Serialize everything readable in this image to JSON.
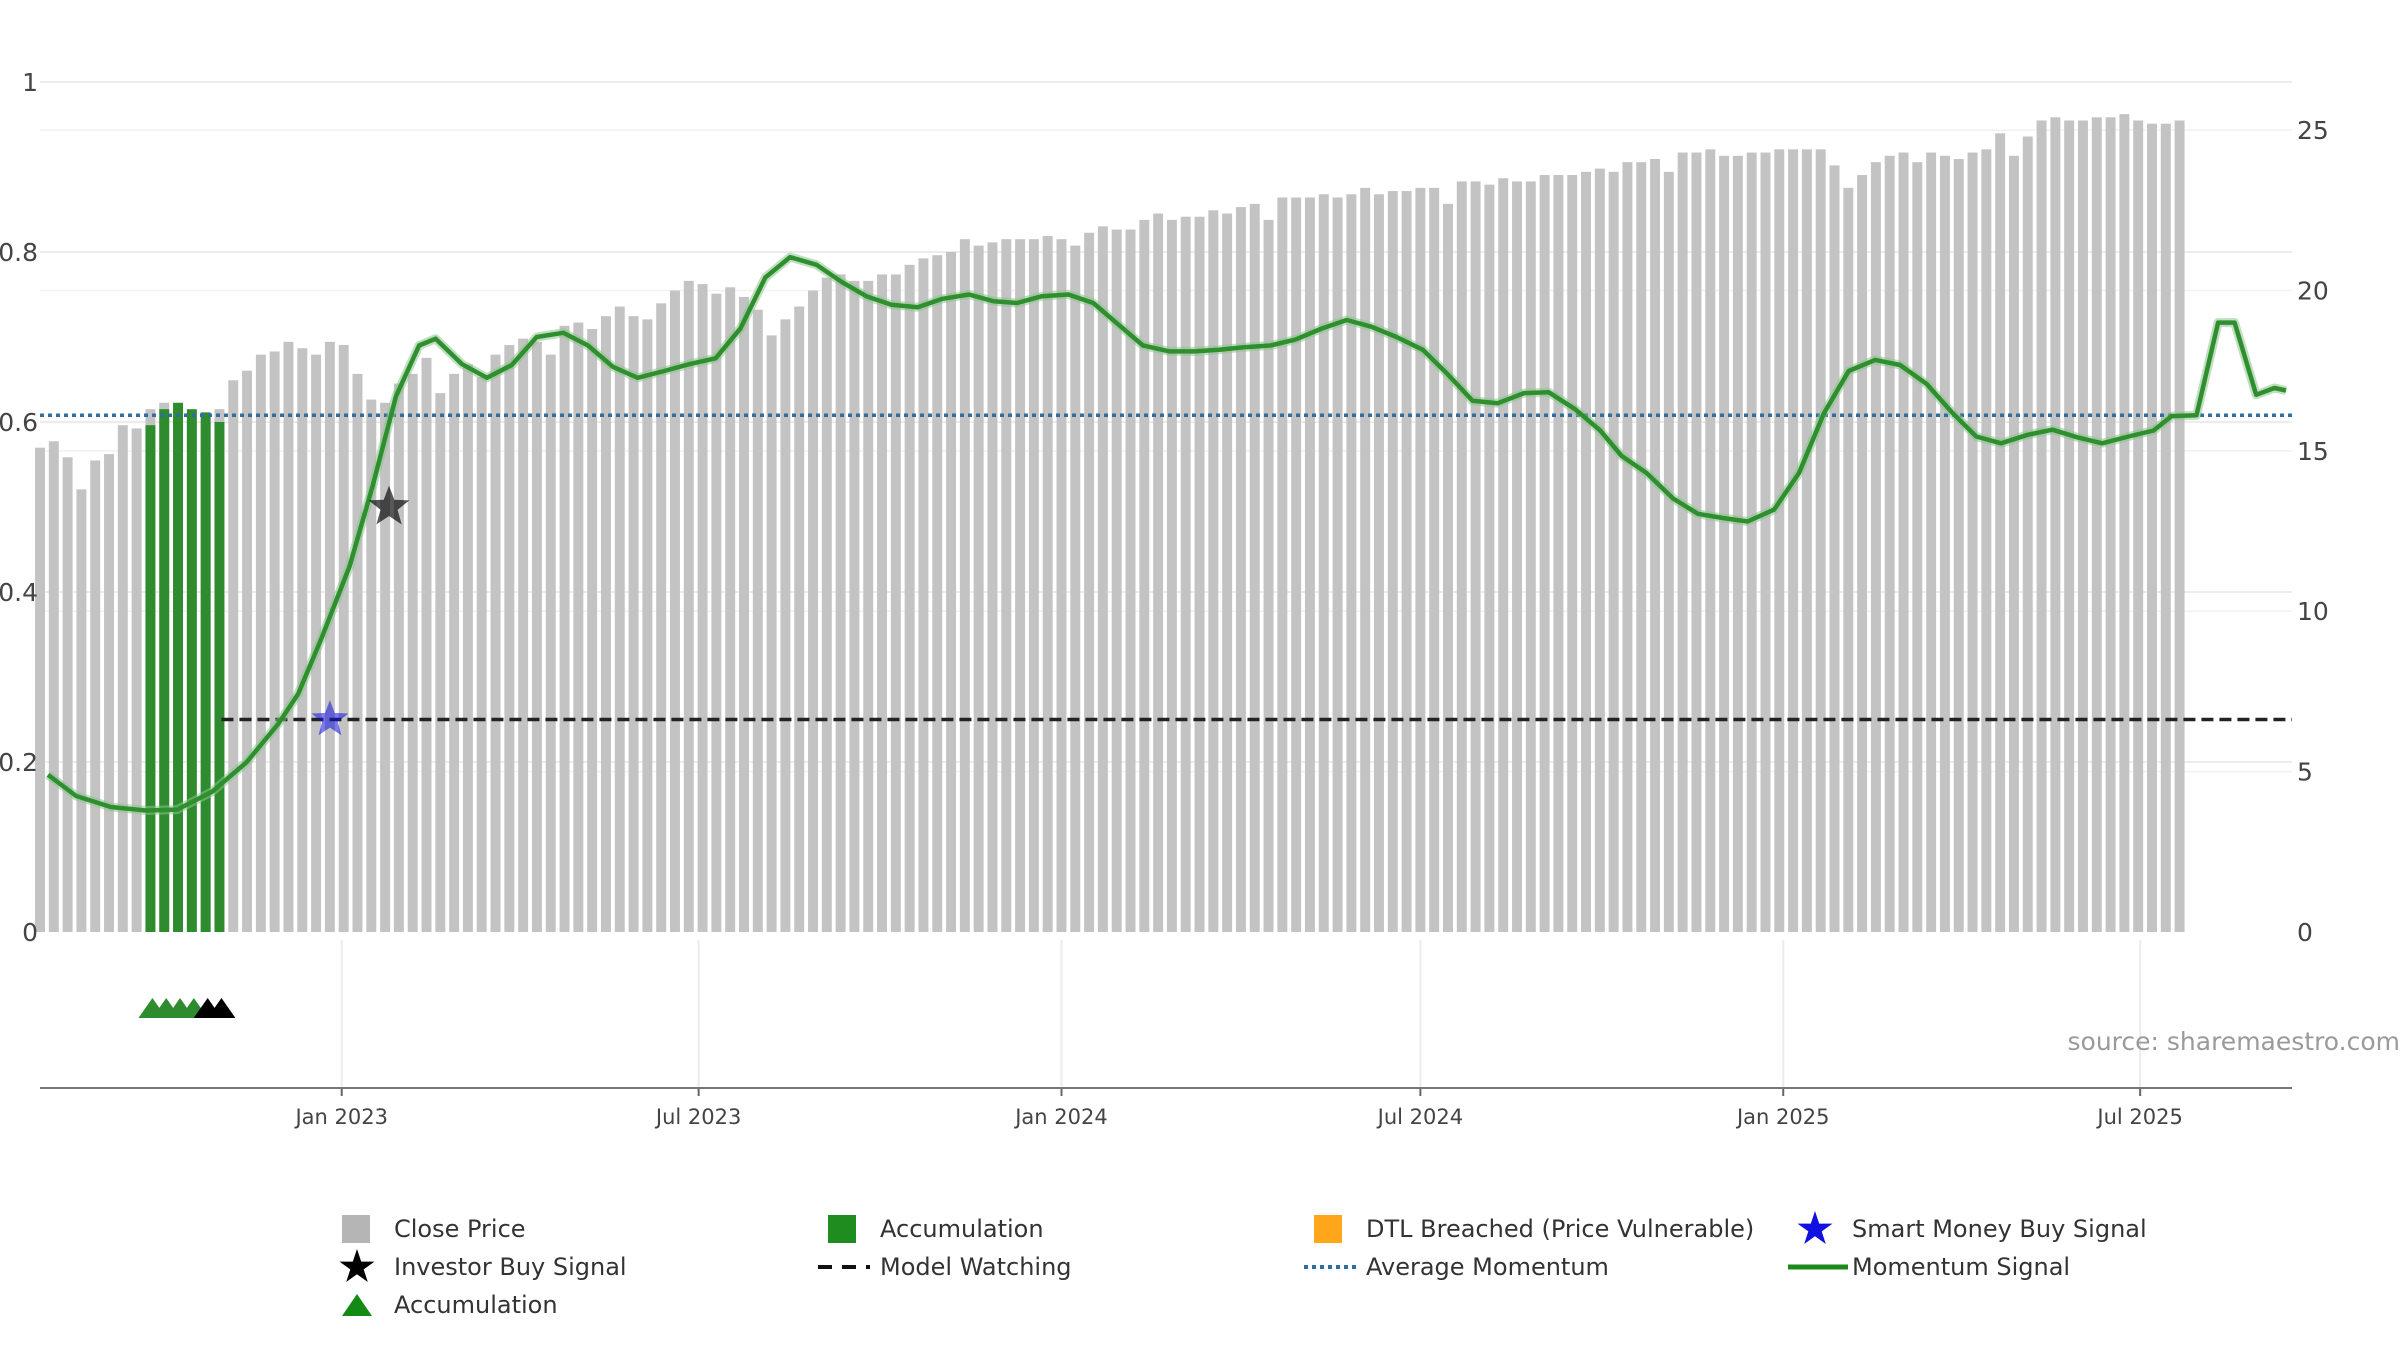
{
  "chart_data": {
    "type": "bar",
    "source_text": "source: sharemaestro.com",
    "left_axis": {
      "ticks": [
        "0",
        "0.2",
        "0.4",
        "0.6",
        "0.8",
        "1"
      ],
      "range": [
        0,
        1
      ]
    },
    "right_axis": {
      "ticks": [
        "0",
        "5",
        "10",
        "15",
        "20",
        "25"
      ],
      "range": [
        0,
        26.5
      ]
    },
    "x_ticks": [
      "Jan 2023",
      "Jul 2023",
      "Jan 2024",
      "Jul 2024",
      "Jan 2025",
      "Jul 2025"
    ],
    "x_tick_dates": [
      "2023-01-01",
      "2023-07-01",
      "2024-01-01",
      "2024-07-01",
      "2025-01-01",
      "2025-07-01"
    ],
    "x_range_dates": [
      "2022-08-01",
      "2025-09-16"
    ],
    "grid": true,
    "weeks_start": "2022-08-01",
    "close_price": [
      15.1,
      15.3,
      14.8,
      13.8,
      14.7,
      14.9,
      15.8,
      15.7,
      16.3,
      16.5,
      16.3,
      16.2,
      15.9,
      16.3,
      17.2,
      17.5,
      18.0,
      18.1,
      18.4,
      18.2,
      18.0,
      18.4,
      18.3,
      17.4,
      16.6,
      16.5,
      17.1,
      17.4,
      17.9,
      16.8,
      17.4,
      17.7,
      17.3,
      18.0,
      18.3,
      18.5,
      18.4,
      18.0,
      18.9,
      19.0,
      18.8,
      19.2,
      19.5,
      19.2,
      19.1,
      19.6,
      20.0,
      20.3,
      20.2,
      19.9,
      20.1,
      19.8,
      19.4,
      18.6,
      19.1,
      19.5,
      20.0,
      20.4,
      20.5,
      20.3,
      20.3,
      20.5,
      20.5,
      20.8,
      21.0,
      21.1,
      21.2,
      21.6,
      21.4,
      21.5,
      21.6,
      21.6,
      21.6,
      21.7,
      21.6,
      21.4,
      21.8,
      22.0,
      21.9,
      21.9,
      22.2,
      22.4,
      22.2,
      22.3,
      22.3,
      22.5,
      22.4,
      22.6,
      22.7,
      22.2,
      22.9,
      22.9,
      22.9,
      23.0,
      22.9,
      23.0,
      23.2,
      23.0,
      23.1,
      23.1,
      23.2,
      23.2,
      22.7,
      23.4,
      23.4,
      23.3,
      23.5,
      23.4,
      23.4,
      23.6,
      23.6,
      23.6,
      23.7,
      23.8,
      23.7,
      24.0,
      24.0,
      24.1,
      23.7,
      24.3,
      24.3,
      24.4,
      24.2,
      24.2,
      24.3,
      24.3,
      24.4,
      24.4,
      24.4,
      24.4,
      23.9,
      23.2,
      23.6,
      24.0,
      24.2,
      24.3,
      24.0,
      24.3,
      24.2,
      24.1,
      24.3,
      24.4,
      24.9,
      24.2,
      24.8,
      25.3,
      25.4,
      25.3,
      25.3,
      25.4,
      25.4,
      25.5,
      25.3,
      25.2,
      25.2,
      25.3
    ],
    "accumulation_bars": [
      [
        8,
        15.8
      ],
      [
        9,
        16.3
      ],
      [
        10,
        16.5
      ],
      [
        11,
        16.3
      ],
      [
        12,
        16.2
      ],
      [
        13,
        15.9
      ]
    ],
    "accumulation_markers_weeks": [
      8,
      9,
      10,
      11
    ],
    "investor_markers_weeks": [
      12,
      13
    ],
    "investor_buy_signal": {
      "date": "2023-01-25",
      "value": 0.5
    },
    "smart_money_buy_signal": {
      "date": "2022-12-26",
      "value": 0.25
    },
    "model_watching": {
      "start": "2022-11-01",
      "end": "2025-09-16",
      "value": 0.25
    },
    "average_momentum": 0.608,
    "momentum_signal": [
      [
        "2022-08-03",
        0.185
      ],
      [
        "2022-08-20",
        0.16
      ],
      [
        "2022-09-10",
        0.147
      ],
      [
        "2022-10-01",
        0.143
      ],
      [
        "2022-10-20",
        0.144
      ],
      [
        "2022-11-10",
        0.165
      ],
      [
        "2022-12-01",
        0.2
      ],
      [
        "2022-12-20",
        0.245
      ],
      [
        "2023-01-01",
        0.28
      ],
      [
        "2023-01-15",
        0.345
      ],
      [
        "2023-02-01",
        0.43
      ],
      [
        "2023-02-15",
        0.525
      ],
      [
        "2023-03-01",
        0.63
      ],
      [
        "2023-03-15",
        0.69
      ],
      [
        "2023-03-25",
        0.698
      ],
      [
        "2023-04-10",
        0.668
      ],
      [
        "2023-04-25",
        0.652
      ],
      [
        "2023-05-10",
        0.667
      ],
      [
        "2023-05-25",
        0.7
      ],
      [
        "2023-06-10",
        0.705
      ],
      [
        "2023-06-25",
        0.69
      ],
      [
        "2023-07-10",
        0.665
      ],
      [
        "2023-07-25",
        0.652
      ],
      [
        "2023-08-10",
        0.66
      ],
      [
        "2023-08-25",
        0.668
      ],
      [
        "2023-09-10",
        0.675
      ],
      [
        "2023-09-25",
        0.71
      ],
      [
        "2023-10-10",
        0.77
      ],
      [
        "2023-10-25",
        0.794
      ],
      [
        "2023-11-10",
        0.785
      ],
      [
        "2023-11-25",
        0.765
      ],
      [
        "2023-12-10",
        0.748
      ],
      [
        "2023-12-25",
        0.738
      ],
      [
        "2024-01-10",
        0.735
      ],
      [
        "2024-01-25",
        0.745
      ],
      [
        "2024-02-10",
        0.75
      ],
      [
        "2024-02-25",
        0.742
      ],
      [
        "2024-03-10",
        0.74
      ],
      [
        "2024-03-25",
        0.748
      ],
      [
        "2024-04-10",
        0.75
      ],
      [
        "2024-04-25",
        0.74
      ],
      [
        "2024-05-10",
        0.715
      ],
      [
        "2024-05-25",
        0.69
      ],
      [
        "2024-06-10",
        0.683
      ],
      [
        "2024-06-25",
        0.683
      ],
      [
        "2024-07-10",
        0.685
      ],
      [
        "2024-07-25",
        0.688
      ],
      [
        "2024-08-10",
        0.69
      ],
      [
        "2024-08-25",
        0.697
      ],
      [
        "2024-09-10",
        0.71
      ],
      [
        "2024-09-25",
        0.72
      ],
      [
        "2024-10-10",
        0.712
      ],
      [
        "2024-10-25",
        0.7
      ],
      [
        "2024-11-10",
        0.685
      ],
      [
        "2024-11-25",
        0.656
      ],
      [
        "2024-12-10",
        0.625
      ],
      [
        "2024-12-25",
        0.622
      ],
      [
        "2025-01-10",
        0.634
      ],
      [
        "2025-01-25",
        0.635
      ],
      [
        "2025-02-10",
        0.615
      ],
      [
        "2025-02-25",
        0.59
      ],
      [
        "2025-03-10",
        0.56
      ],
      [
        "2025-03-25",
        0.54
      ],
      [
        "2025-04-10",
        0.51
      ],
      [
        "2025-04-25",
        0.492
      ],
      [
        "2025-05-10",
        0.487
      ],
      [
        "2025-05-25",
        0.483
      ],
      [
        "2025-06-10",
        0.497
      ],
      [
        "2025-06-25",
        0.54
      ],
      [
        "2025-07-10",
        0.61
      ],
      [
        "2025-07-25",
        0.66
      ],
      [
        "2025-08-10",
        0.673
      ],
      [
        "2025-08-25",
        0.667
      ],
      [
        "2025-09-10",
        0.645
      ],
      [
        "2025-09-25",
        0.612
      ],
      [
        "2025-10-10",
        0.583
      ],
      [
        "2025-10-25",
        0.575
      ],
      [
        "2025-11-10",
        0.585
      ],
      [
        "2025-11-25",
        0.591
      ],
      [
        "2025-12-10",
        0.582
      ],
      [
        "2025-12-25",
        0.575
      ],
      [
        "2026-01-10",
        0.583
      ],
      [
        "2026-01-25",
        0.59
      ],
      [
        "2026-02-05",
        0.607
      ],
      [
        "2026-02-20",
        0.608
      ],
      [
        "2026-03-05",
        0.717
      ],
      [
        "2026-03-15",
        0.717
      ],
      [
        "2026-03-28",
        0.632
      ],
      [
        "2026-04-08",
        0.64
      ],
      [
        "2026-04-15",
        0.637
      ]
    ],
    "colors": {
      "close_price": "#c3c3c3",
      "accumulation": "#2e8b2e",
      "momentum": "#2f8f2f",
      "momentum_strong": "#0a7d0a",
      "average_momentum": "#2f6e9e",
      "model_watching": "#222222",
      "dtl": "#ffa500",
      "smart_money": "#1010e0",
      "investor": "#000000",
      "grid": "#ececec"
    }
  },
  "legend": [
    {
      "label": "Close Price",
      "symbol": "square",
      "color": "#b5b5b5"
    },
    {
      "label": "Accumulation",
      "symbol": "square",
      "color": "#1f8c1f"
    },
    {
      "label": "DTL Breached (Price Vulnerable)",
      "symbol": "square",
      "color": "#ffa61a"
    },
    {
      "label": "Smart Money Buy Signal",
      "symbol": "star",
      "color": "#1010e0"
    },
    {
      "label": "Investor Buy Signal",
      "symbol": "star",
      "color": "#000000"
    },
    {
      "label": "Model Watching",
      "symbol": "dash",
      "color": "#111111"
    },
    {
      "label": "Average Momentum",
      "symbol": "dot",
      "color": "#2f6e9e"
    },
    {
      "label": "Momentum Signal",
      "symbol": "line",
      "color": "#1a8a1a"
    },
    {
      "label": "Accumulation",
      "symbol": "triangle",
      "color": "#138a13"
    }
  ]
}
